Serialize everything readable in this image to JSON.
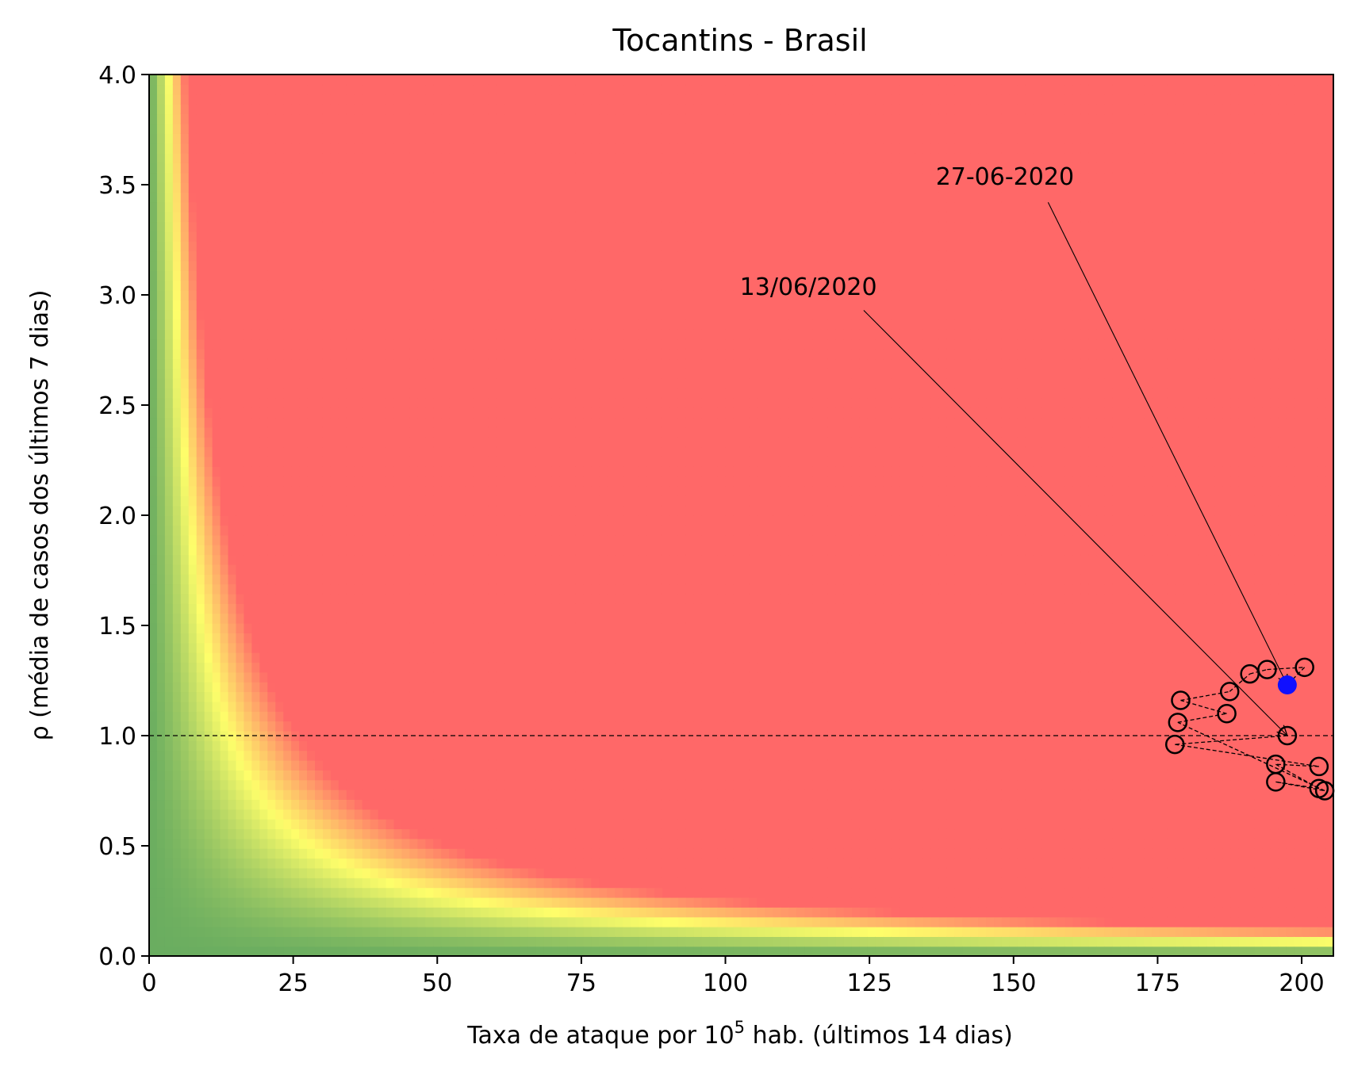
{
  "chart_data": {
    "type": "scatter",
    "title": "Tocantins - Brasil",
    "xlabel": {
      "main": "Taxa de ataque por 10",
      "sup": "5",
      "rest": " hab. (últimos 14 dias)"
    },
    "ylabel": "ρ (média de casos dos últimos 7 dias)",
    "xlim": [
      0,
      205.5
    ],
    "ylim": [
      0,
      4.0
    ],
    "xticks": [
      "0",
      "25",
      "50",
      "75",
      "100",
      "125",
      "150",
      "175",
      "200"
    ],
    "xtick_values": [
      0,
      25,
      50,
      75,
      100,
      125,
      150,
      175,
      200
    ],
    "yticks": [
      "0.0",
      "0.5",
      "1.0",
      "1.5",
      "2.0",
      "2.5",
      "3.0",
      "3.5",
      "4.0"
    ],
    "ytick_values": [
      0,
      0.5,
      1.0,
      1.5,
      2.0,
      2.5,
      3.0,
      3.5,
      4.0
    ],
    "reference_line_y": 1.0,
    "background": "risk heatmap (green → yellow → red) varying with attack rate × ρ",
    "colors": {
      "green": "#6aad60",
      "yellow": "#fefe6a",
      "red": "#ff6868",
      "current_point": "#1010ff"
    },
    "series": [
      {
        "points": [
          {
            "x": 197.5,
            "y": 1.0
          },
          {
            "x": 178.0,
            "y": 0.96
          },
          {
            "x": 203.0,
            "y": 0.86
          },
          {
            "x": 195.5,
            "y": 0.87
          },
          {
            "x": 203.0,
            "y": 0.76
          },
          {
            "x": 195.5,
            "y": 0.79
          },
          {
            "x": 204.0,
            "y": 0.75
          },
          {
            "x": 178.5,
            "y": 1.06
          },
          {
            "x": 187.0,
            "y": 1.1
          },
          {
            "x": 179.0,
            "y": 1.16
          },
          {
            "x": 187.5,
            "y": 1.2
          },
          {
            "x": 191.0,
            "y": 1.28
          },
          {
            "x": 194.0,
            "y": 1.3
          },
          {
            "x": 200.5,
            "y": 1.31
          },
          {
            "x": 197.5,
            "y": 1.23
          }
        ]
      }
    ],
    "annotations": [
      {
        "text": "13/06/2020",
        "text_x": 102.5,
        "text_y": 3.0,
        "arrow_from": [
          124.0,
          2.93
        ],
        "arrow_to": [
          197.5,
          1.0
        ]
      },
      {
        "text": "27-06-2020",
        "text_x": 136.5,
        "text_y": 3.5,
        "arrow_from": [
          156.0,
          3.42
        ],
        "arrow_to": [
          197.5,
          1.23
        ]
      }
    ]
  }
}
